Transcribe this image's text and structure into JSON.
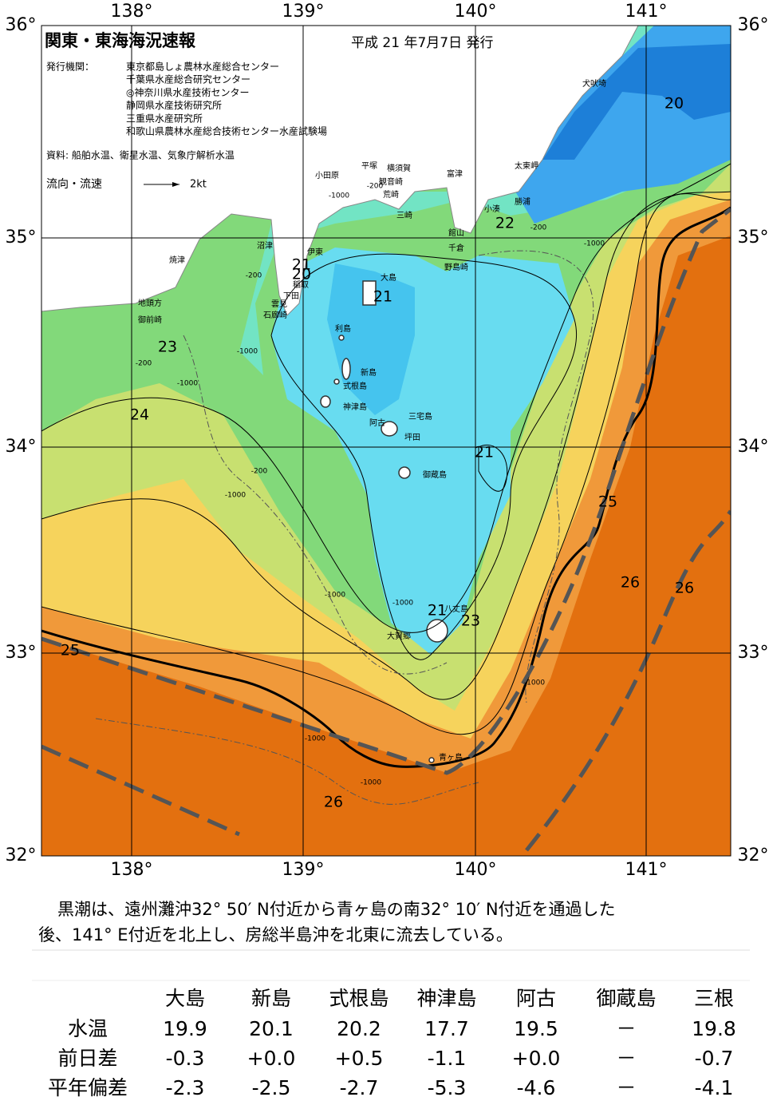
{
  "header": {
    "title": "関東・東海海況速報",
    "date": "平成 21 年7月7日 発行",
    "agency_label": "発行機関：",
    "agencies": [
      "東京都島しょ農林水産総合センター",
      "千葉県水産総合研究センター",
      "◎神奈川県水産技術センター",
      "静岡県水産技術研究所",
      "三重県水産研究所",
      "和歌山県農林水産総合技術センター水産試験場"
    ],
    "source": "資料: 船舶水温、衛星水温、気象庁解析水温",
    "legend_label": "流向・流速",
    "legend_speed": "2kt"
  },
  "axes": {
    "lon_labels": [
      "138°",
      "139°",
      "140°",
      "141°"
    ],
    "lat_labels": [
      "36°",
      "35°",
      "34°",
      "33°",
      "32°"
    ]
  },
  "places": [
    "犬吠埼",
    "太東岬",
    "勝浦",
    "小湊",
    "館山",
    "千倉",
    "野島崎",
    "富津",
    "観音崎",
    "横須賀",
    "荒崎",
    "平塚",
    "三崎",
    "小田原",
    "沼津",
    "伊東",
    "稲取",
    "下田",
    "雲見",
    "石廊崎",
    "焼津",
    "地頭方",
    "御前崎",
    "大島",
    "利島",
    "新島",
    "式根島",
    "神津島",
    "阿古",
    "三宅島",
    "坪田",
    "御蔵島",
    "八丈島",
    "大賀郷",
    "青ヶ島"
  ],
  "temperature_labels": [
    "20",
    "22",
    "21",
    "20",
    "21",
    "23",
    "24",
    "21",
    "25",
    "26",
    "26",
    "25",
    "26",
    "21",
    "23"
  ],
  "depth_labels": [
    "-1000",
    "-200",
    "-200",
    "-1000",
    "-200",
    "-1000",
    "-200",
    "-1000",
    "-200",
    "-1000",
    "-1000",
    "-1000",
    "-1000",
    "-1000",
    "-1000"
  ],
  "description": [
    "黒潮は、遠州灘沖32° 50′ N付近から青ヶ島の南32° 10′ N付近を通過した",
    "後、141° E付近を北上し、房総半島沖を北東に流去している。"
  ],
  "table": {
    "columns": [
      "大島",
      "新島",
      "式根島",
      "神津島",
      "阿古",
      "御蔵島",
      "三根"
    ],
    "rows": [
      {
        "label": "水温",
        "values": [
          "19.9",
          "20.1",
          "20.2",
          "17.7",
          "19.5",
          "－",
          "19.8"
        ]
      },
      {
        "label": "前日差",
        "values": [
          "-0.3",
          "+0.0",
          "+0.5",
          "-1.1",
          "+0.0",
          "－",
          "-0.7"
        ]
      },
      {
        "label": "平年偏差",
        "values": [
          "-2.3",
          "-2.5",
          "-2.7",
          "-5.3",
          "-4.6",
          "－",
          "-4.1"
        ]
      }
    ]
  }
}
